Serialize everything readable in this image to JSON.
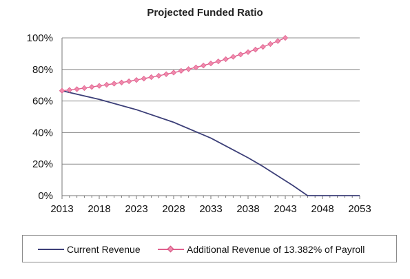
{
  "chart_data": {
    "type": "line",
    "title": "Projected Funded Ratio",
    "xlabel": "",
    "ylabel": "",
    "xlim": [
      2013,
      2053
    ],
    "ylim": [
      0,
      100
    ],
    "x_ticks": [
      2013,
      2018,
      2023,
      2028,
      2033,
      2038,
      2043,
      2048,
      2053
    ],
    "y_ticks": [
      "0%",
      "20%",
      "40%",
      "60%",
      "80%",
      "100%"
    ],
    "y_tick_values": [
      0,
      20,
      40,
      60,
      80,
      100
    ],
    "grid": "horizontal",
    "legend_position": "bottom",
    "series": [
      {
        "name": "Current Revenue",
        "color": "#3c3f78",
        "marker": "none",
        "x": [
          2013,
          2018,
          2023,
          2028,
          2033,
          2036,
          2038,
          2040,
          2042,
          2044,
          2046,
          2048,
          2050,
          2053
        ],
        "y": [
          66.5,
          61,
          54.5,
          46.5,
          36.5,
          29,
          24,
          18.5,
          12.5,
          6.5,
          0,
          0,
          0,
          0
        ]
      },
      {
        "name": "Additional Revenue of 13.382% of Payroll",
        "color": "#e0608e",
        "marker": "diamond",
        "x": [
          2013,
          2014,
          2015,
          2016,
          2017,
          2018,
          2019,
          2020,
          2021,
          2022,
          2023,
          2024,
          2025,
          2026,
          2027,
          2028,
          2029,
          2030,
          2031,
          2032,
          2033,
          2034,
          2035,
          2036,
          2037,
          2038,
          2039,
          2040,
          2041,
          2042,
          2043
        ],
        "y": [
          66.5,
          67,
          67.5,
          68.2,
          68.9,
          69.6,
          70.3,
          71,
          71.7,
          72.5,
          73.3,
          74.2,
          75.1,
          76,
          77,
          78,
          79.1,
          80.2,
          81.3,
          82.5,
          83.8,
          85.1,
          86.5,
          88,
          89.5,
          91,
          92.6,
          94.3,
          96.1,
          98,
          100
        ]
      }
    ]
  }
}
